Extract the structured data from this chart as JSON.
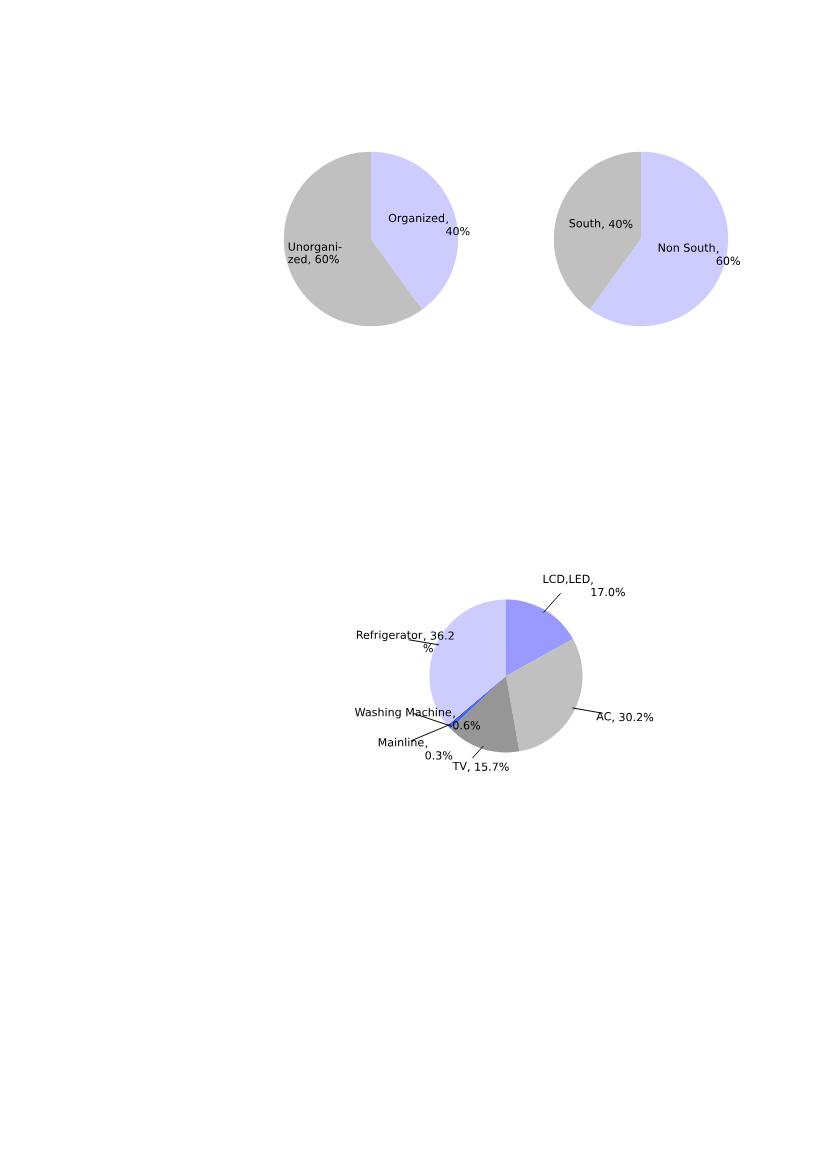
{
  "chart_data": [
    {
      "type": "pie",
      "categories": [
        "Organized",
        "Unorgani-\nzed"
      ],
      "values": [
        40,
        60
      ],
      "colors": [
        "#ccccff",
        "#c0c0c0"
      ],
      "value_labels": [
        ",\n40%",
        ", 60%"
      ]
    },
    {
      "type": "pie",
      "categories": [
        "Non South",
        "South"
      ],
      "values": [
        60,
        40
      ],
      "colors": [
        "#ccccff",
        "#c0c0c0"
      ],
      "value_labels": [
        ",\n60%",
        ", 40%"
      ]
    },
    {
      "type": "pie",
      "categories": [
        "LCD,LED",
        "AC",
        "TV",
        "Washing Machine",
        "Mainline",
        "Refrigerator"
      ],
      "values": [
        17.0,
        30.2,
        15.7,
        0.6,
        0.3,
        36.2
      ],
      "colors": [
        "#9999ff",
        "#c0c0c0",
        "#969696",
        "#3366ff",
        "#333399",
        "#ccccff"
      ],
      "value_labels": [
        ",\n17.0%",
        ", 30.2%",
        ", 15.7%",
        ",\n0.6%",
        ",\n0.3%",
        ", 36.2\n%"
      ]
    }
  ]
}
